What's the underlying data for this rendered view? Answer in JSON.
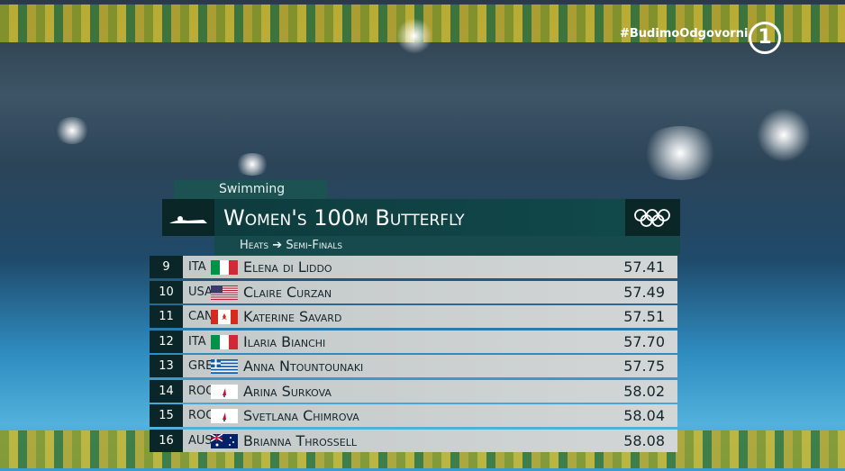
{
  "header": {
    "hashtag": "#BudimoOdgovorni",
    "channel": "1"
  },
  "graphic": {
    "sport": "Swimming",
    "title": "Women's 100m Butterfly",
    "stage_from": "Heats",
    "stage_to": "Semi-Finals",
    "rows": [
      [
        "9",
        "ITA",
        "Elena di Liddo",
        "57.41"
      ],
      [
        "10",
        "USA",
        "Claire Curzan",
        "57.49"
      ],
      [
        "11",
        "CAN",
        "Katerine Savard",
        "57.51"
      ],
      [
        "12",
        "ITA",
        "Ilaria Bianchi",
        "57.70"
      ],
      [
        "13",
        "GRE",
        "Anna Ntountounaki",
        "57.75"
      ],
      [
        "14",
        "ROC",
        "Arina Surkova",
        "58.02"
      ],
      [
        "15",
        "ROC",
        "Svetlana Chimrova",
        "58.04"
      ],
      [
        "16",
        "AUS",
        "Brianna Throssell",
        "58.08"
      ]
    ]
  }
}
